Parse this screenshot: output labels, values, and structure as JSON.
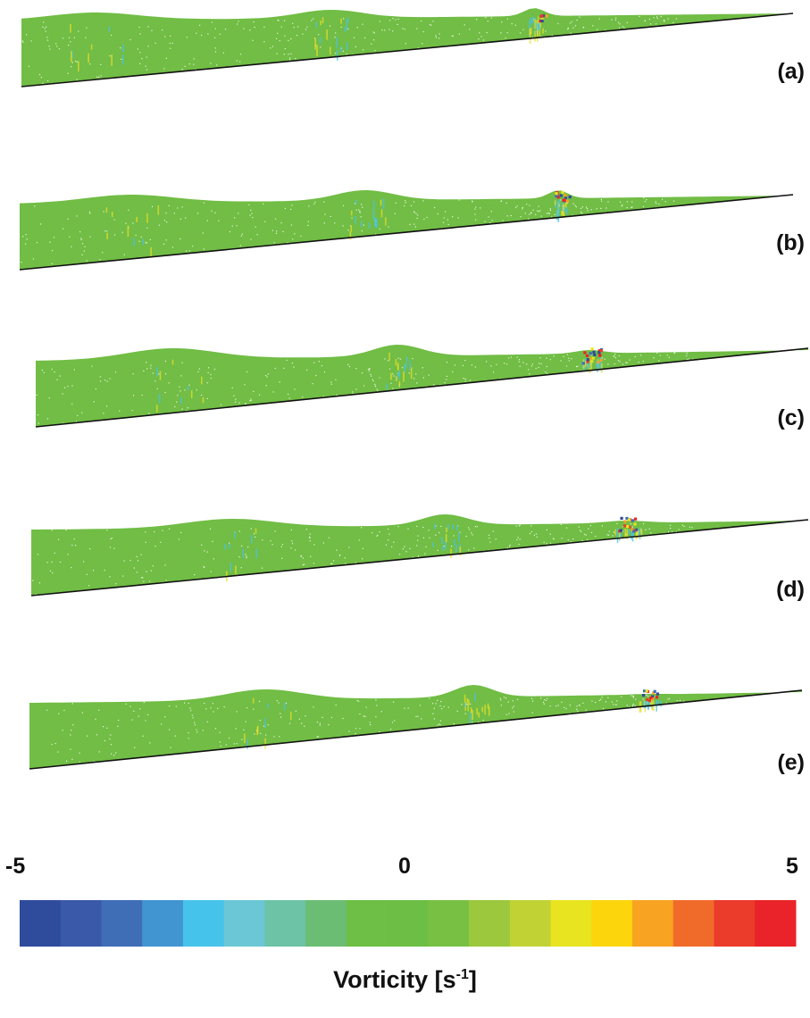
{
  "panels": [
    {
      "label": "(a)"
    },
    {
      "label": "(b)"
    },
    {
      "label": "(c)"
    },
    {
      "label": "(d)"
    },
    {
      "label": "(e)"
    }
  ],
  "colorbar": {
    "min_label": "-5",
    "mid_label": "0",
    "max_label": "5",
    "title_main": "Vorticity [s",
    "title_exp": "-1",
    "title_end": "]",
    "colors": [
      "#2f4b9c",
      "#3a59a8",
      "#3f6db6",
      "#4195d1",
      "#46c3ea",
      "#6bc7d6",
      "#6dc3a6",
      "#6cbd74",
      "#6ebf45",
      "#6dbe44",
      "#78c043",
      "#9bc83d",
      "#c1d235",
      "#e8e41f",
      "#fdd50d",
      "#f8a322",
      "#f06b2a",
      "#ea3b2b",
      "#e92329"
    ]
  },
  "fluid_color": "#71bd45",
  "bed_color": "#111111"
}
